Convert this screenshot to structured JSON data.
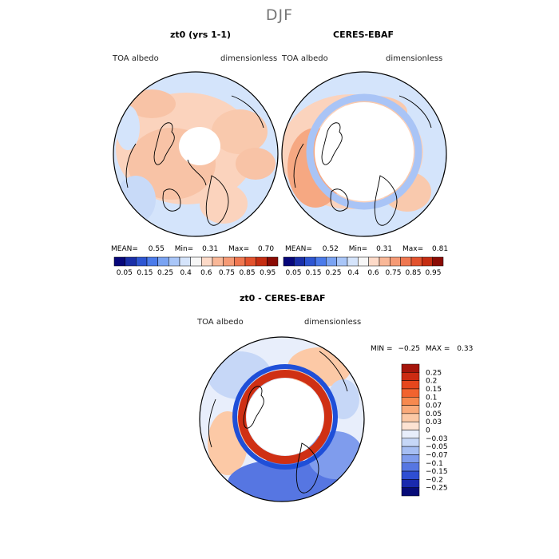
{
  "season": "DJF",
  "panels": [
    {
      "title": "zt0 (yrs 1-1)",
      "variable": "TOA albedo",
      "units": "dimensionless",
      "stats": {
        "mean_label": "MEAN=",
        "mean": "0.55",
        "min_label": "Min=",
        "min": "0.31",
        "max_label": "Max=",
        "max": "0.70"
      }
    },
    {
      "title": "CERES-EBAF",
      "variable": "TOA albedo",
      "units": "dimensionless",
      "stats": {
        "mean_label": "MEAN=",
        "mean": "0.52",
        "min_label": "Min=",
        "min": "0.31",
        "max_label": "Max=",
        "max": "0.81"
      }
    }
  ],
  "top_colorbar": {
    "tick_labels": [
      "0.05",
      "0.15",
      "0.25",
      "0.4",
      "0.6",
      "0.75",
      "0.85",
      "0.95"
    ],
    "colors": [
      "#07077a",
      "#1a2fa8",
      "#2e56d2",
      "#4b7bea",
      "#7aa3f2",
      "#a9c6f8",
      "#d5e4fb",
      "#f7f7f7",
      "#fddac8",
      "#f9b898",
      "#f59a75",
      "#ef7750",
      "#e2522d",
      "#c52d12",
      "#8a0b04"
    ]
  },
  "diff_panel": {
    "title": "zt0 - CERES-EBAF",
    "variable": "TOA albedo",
    "units": "dimensionless",
    "min_label": "MIN =",
    "min": "−0.25",
    "max_label": "MAX =",
    "max": "0.33",
    "colorbar": {
      "tick_labels": [
        "0.25",
        "0.2",
        "0.15",
        "0.1",
        "0.07",
        "0.05",
        "0.03",
        "0",
        "−0.03",
        "−0.05",
        "−0.07",
        "−0.1",
        "−0.15",
        "−0.2",
        "−0.25"
      ],
      "colors": [
        "#a5150b",
        "#cc2b12",
        "#e6461d",
        "#f2632f",
        "#f7894f",
        "#faaa7a",
        "#fcc9a6",
        "#fde3d3",
        "#e8eefb",
        "#c6d7f7",
        "#a6bef3",
        "#7f9ced",
        "#5676e2",
        "#2e4ed3",
        "#1a2aae",
        "#070c78"
      ]
    }
  },
  "map_colors": {
    "ocean_light_blue": "#d4e4fb",
    "land_light_orange": "#fbd3bd",
    "orange_mid": "#f6a882",
    "blue_mid": "#a9c4f6",
    "diff_red_ring": "#cf3014",
    "diff_blue_ring": "#1f4fd8",
    "coastline": "#000000"
  }
}
